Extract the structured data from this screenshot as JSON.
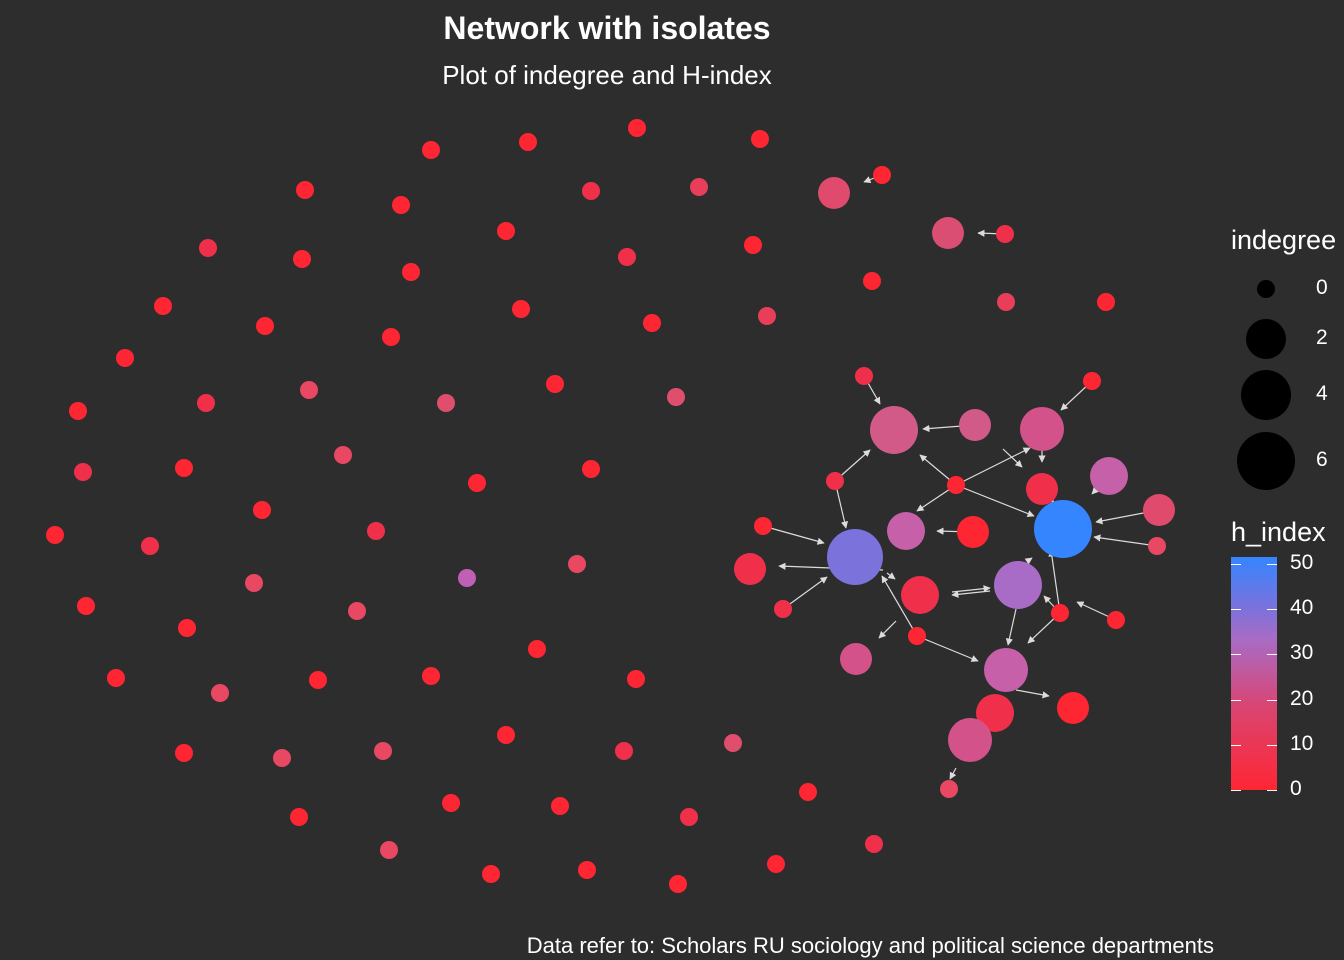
{
  "header": {
    "title": "Network with isolates",
    "subtitle": "Plot of indegree and H-index"
  },
  "caption": "Data refer to: Scholars RU sociology and political science departments",
  "legend": {
    "size_title": "indegree",
    "size_items": [
      {
        "label": "0",
        "value": 0
      },
      {
        "label": "2",
        "value": 2
      },
      {
        "label": "4",
        "value": 4
      },
      {
        "label": "6",
        "value": 6
      }
    ],
    "color_title": "h_index",
    "color_ticks": [
      {
        "label": "50",
        "value": 50
      },
      {
        "label": "40",
        "value": 40
      },
      {
        "label": "30",
        "value": 30
      },
      {
        "label": "20",
        "value": 20
      },
      {
        "label": "10",
        "value": 10
      },
      {
        "label": "0",
        "value": 0
      }
    ]
  },
  "colors": {
    "background": "#2d2d2d",
    "low": "#ff2634",
    "high": "#3585ff",
    "edge": "#dcdcdc"
  }
}
